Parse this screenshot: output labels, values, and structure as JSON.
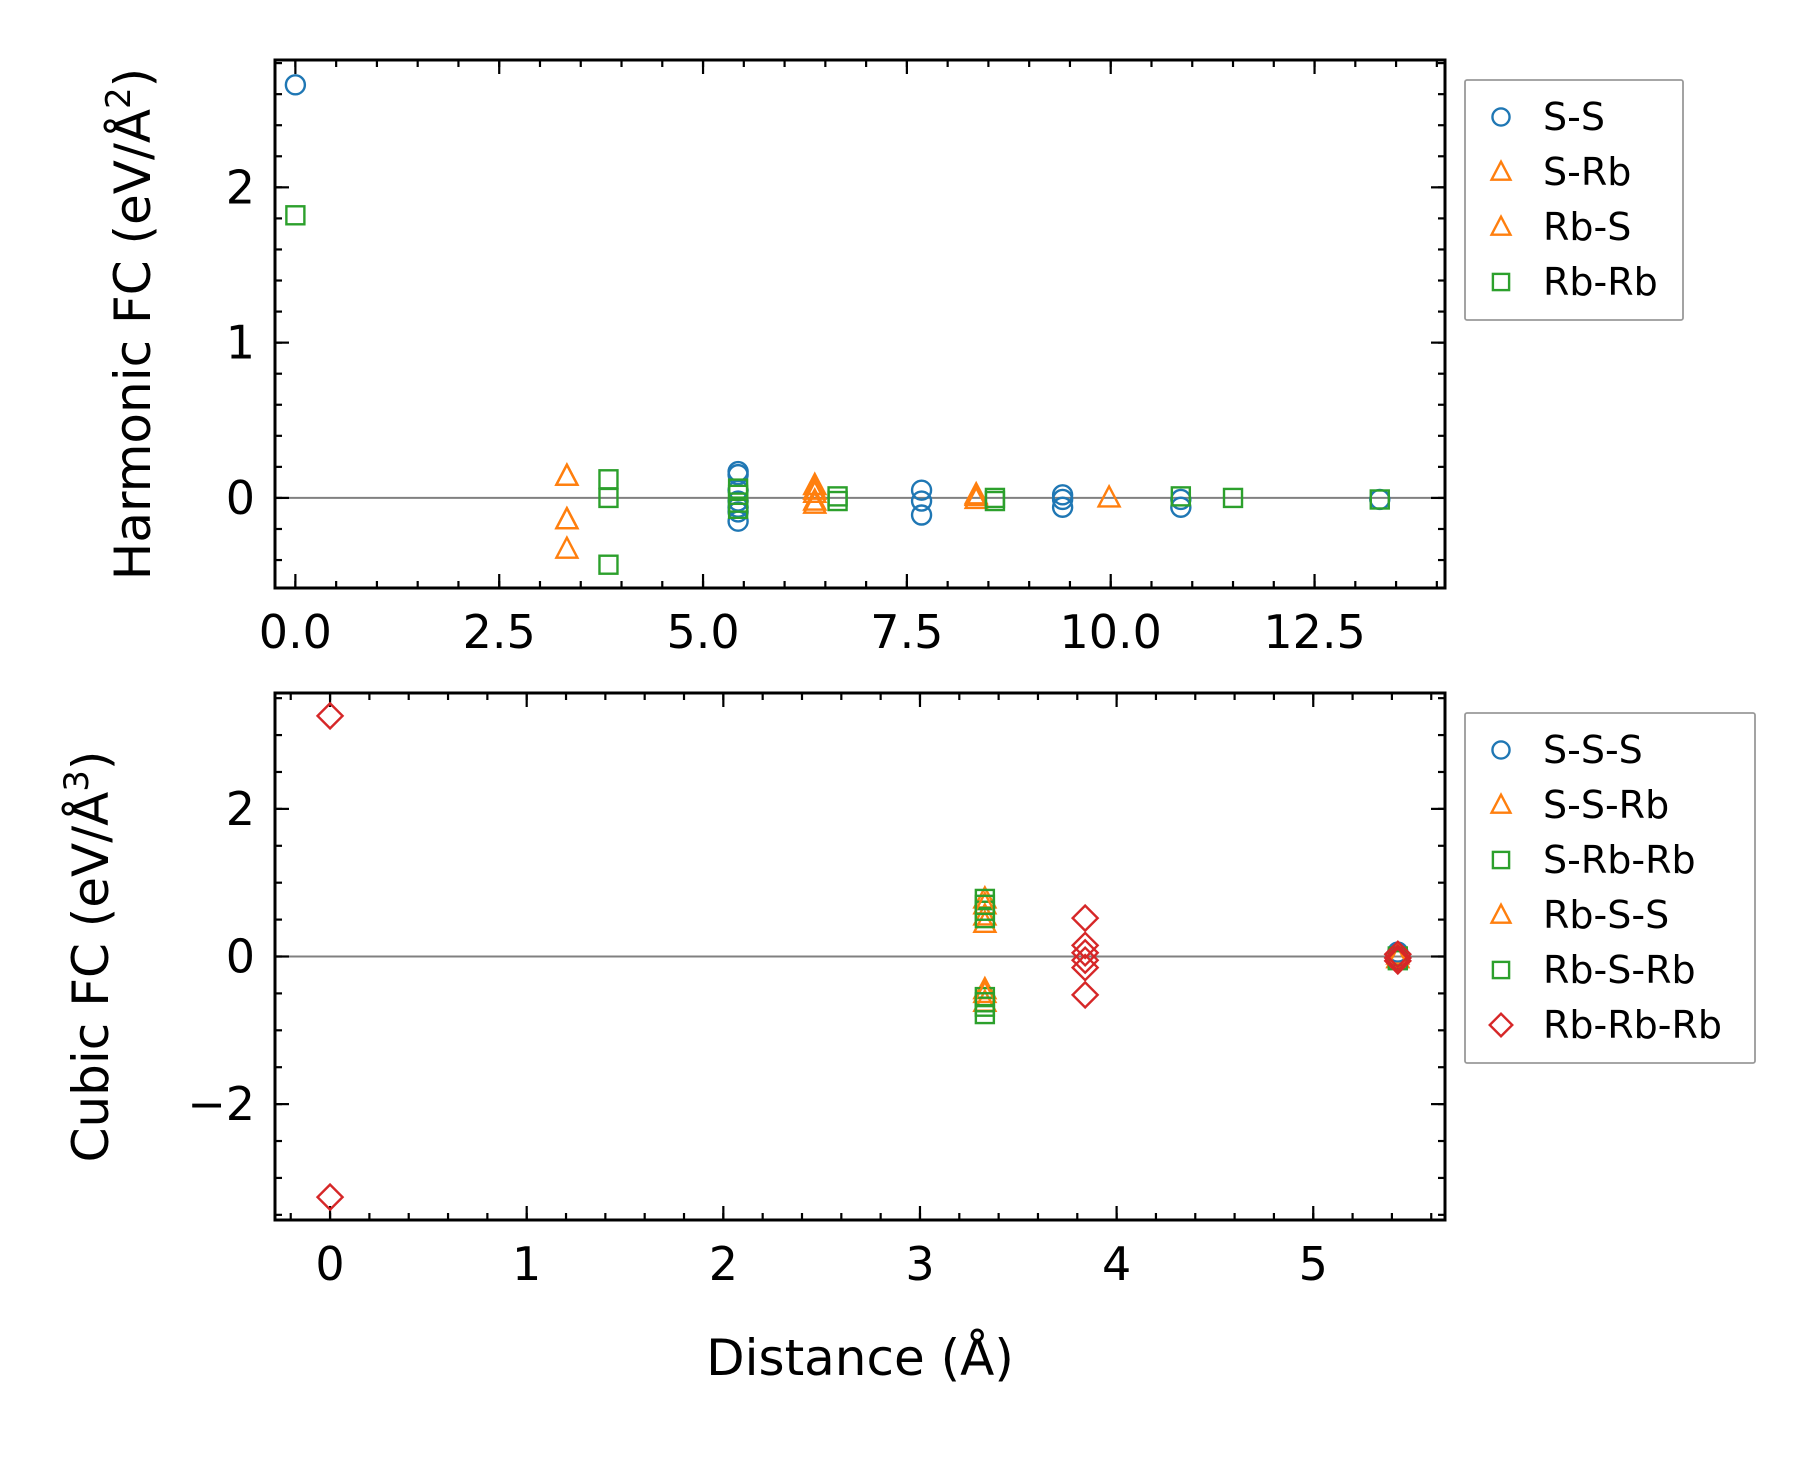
{
  "chart_data": [
    {
      "type": "scatter",
      "title": "",
      "xlabel": "",
      "ylabel": "Harmonic FC (eV/Å",
      "ylabel_sup": "2",
      "ylabel_end": ")",
      "xlim": [
        -0.25,
        14.1
      ],
      "ylim": [
        -0.58,
        2.82
      ],
      "xticks": [
        0.0,
        2.5,
        5.0,
        7.5,
        10.0,
        12.5
      ],
      "xtick_labels": [
        "0.0",
        "2.5",
        "5.0",
        "7.5",
        "10.0",
        "12.5"
      ],
      "yticks": [
        0,
        1,
        2
      ],
      "ytick_labels": [
        "0",
        "1",
        "2"
      ],
      "zero_line": true,
      "series": [
        {
          "name": "S-S",
          "marker": "circle",
          "color": "#1f77b4",
          "points": [
            [
              0.0,
              2.66
            ],
            [
              5.43,
              0.17
            ],
            [
              5.43,
              0.15
            ],
            [
              5.43,
              0.05
            ],
            [
              5.43,
              -0.02
            ],
            [
              5.43,
              -0.06
            ],
            [
              5.43,
              -0.09
            ],
            [
              5.43,
              -0.15
            ],
            [
              7.68,
              0.05
            ],
            [
              7.68,
              -0.02
            ],
            [
              7.68,
              -0.11
            ],
            [
              9.41,
              0.02
            ],
            [
              9.41,
              -0.01
            ],
            [
              9.41,
              -0.06
            ],
            [
              10.86,
              -0.01
            ],
            [
              10.86,
              -0.06
            ],
            [
              13.3,
              -0.01
            ]
          ]
        },
        {
          "name": "S-Rb",
          "marker": "triangle",
          "color": "#ff7f0e",
          "points": [
            [
              3.33,
              0.14
            ],
            [
              3.33,
              -0.14
            ],
            [
              3.33,
              -0.33
            ],
            [
              6.37,
              0.08
            ],
            [
              6.37,
              0.03
            ],
            [
              6.37,
              -0.02
            ],
            [
              6.37,
              -0.04
            ],
            [
              8.35,
              0.02
            ],
            [
              8.35,
              -0.01
            ],
            [
              9.98,
              0.0
            ]
          ]
        },
        {
          "name": "Rb-S",
          "marker": "triangle",
          "color": "#ff7f0e",
          "points": [
            [
              3.33,
              0.14
            ],
            [
              3.33,
              -0.14
            ],
            [
              6.37,
              0.05
            ],
            [
              8.35,
              0.01
            ]
          ]
        },
        {
          "name": "Rb-Rb",
          "marker": "square",
          "color": "#2ca02c",
          "points": [
            [
              0.0,
              1.82
            ],
            [
              3.84,
              0.12
            ],
            [
              3.84,
              0.0
            ],
            [
              3.84,
              -0.43
            ],
            [
              5.43,
              0.06
            ],
            [
              5.43,
              0.02
            ],
            [
              5.43,
              -0.03
            ],
            [
              5.43,
              -0.07
            ],
            [
              6.65,
              0.01
            ],
            [
              6.65,
              -0.02
            ],
            [
              8.58,
              0.0
            ],
            [
              8.58,
              -0.02
            ],
            [
              10.86,
              0.01
            ],
            [
              11.5,
              0.0
            ],
            [
              13.3,
              -0.01
            ]
          ]
        }
      ],
      "legend": {
        "position": "outside-right-top",
        "entries": [
          "S-S",
          "S-Rb",
          "Rb-S",
          "Rb-Rb"
        ]
      }
    },
    {
      "type": "scatter",
      "title": "",
      "xlabel": "Distance (Å)",
      "ylabel": "Cubic FC (eV/Å",
      "ylabel_sup": "3",
      "ylabel_end": ")",
      "xlim": [
        -0.28,
        5.67
      ],
      "ylim": [
        -3.57,
        3.57
      ],
      "xticks": [
        0,
        1,
        2,
        3,
        4,
        5
      ],
      "xtick_labels": [
        "0",
        "1",
        "2",
        "3",
        "4",
        "5"
      ],
      "yticks": [
        -2,
        0,
        2
      ],
      "ytick_labels": [
        "−2",
        "0",
        "2"
      ],
      "zero_line": true,
      "series": [
        {
          "name": "S-S-S",
          "marker": "circle",
          "color": "#1f77b4",
          "points": [
            [
              5.43,
              0.06
            ],
            [
              5.43,
              -0.02
            ]
          ]
        },
        {
          "name": "S-S-Rb",
          "marker": "triangle",
          "color": "#ff7f0e",
          "points": [
            [
              3.33,
              0.78
            ],
            [
              3.33,
              0.55
            ],
            [
              3.33,
              0.45
            ],
            [
              3.33,
              -0.45
            ],
            [
              3.33,
              -0.62
            ],
            [
              5.43,
              0.02
            ]
          ]
        },
        {
          "name": "S-Rb-Rb",
          "marker": "square",
          "color": "#2ca02c",
          "points": [
            [
              3.33,
              0.78
            ],
            [
              3.33,
              0.62
            ],
            [
              3.33,
              0.52
            ],
            [
              3.33,
              -0.55
            ],
            [
              3.33,
              -0.68
            ],
            [
              3.33,
              -0.78
            ],
            [
              5.43,
              0.0
            ]
          ]
        },
        {
          "name": "Rb-S-S",
          "marker": "triangle",
          "color": "#ff7f0e",
          "points": [
            [
              3.33,
              0.7
            ],
            [
              3.33,
              -0.5
            ],
            [
              5.43,
              -0.03
            ]
          ]
        },
        {
          "name": "Rb-S-Rb",
          "marker": "square",
          "color": "#2ca02c",
          "points": [
            [
              3.33,
              0.7
            ],
            [
              3.33,
              -0.62
            ],
            [
              5.43,
              -0.05
            ]
          ]
        },
        {
          "name": "Rb-Rb-Rb",
          "marker": "diamond",
          "color": "#d62728",
          "points": [
            [
              0.0,
              3.26
            ],
            [
              0.0,
              -3.26
            ],
            [
              3.84,
              0.52
            ],
            [
              3.84,
              0.15
            ],
            [
              3.84,
              0.05
            ],
            [
              3.84,
              -0.05
            ],
            [
              3.84,
              -0.15
            ],
            [
              3.84,
              -0.52
            ],
            [
              5.43,
              0.03
            ],
            [
              5.43,
              -0.02
            ],
            [
              5.43,
              -0.06
            ]
          ]
        }
      ],
      "legend": {
        "position": "outside-right-top",
        "entries": [
          "S-S-S",
          "S-S-Rb",
          "S-Rb-Rb",
          "Rb-S-S",
          "Rb-S-Rb",
          "Rb-Rb-Rb"
        ]
      }
    }
  ]
}
